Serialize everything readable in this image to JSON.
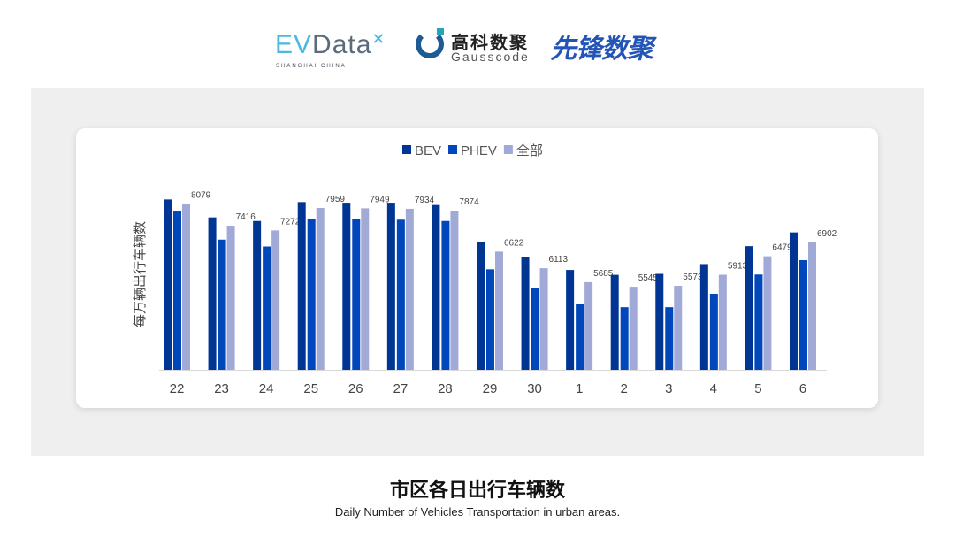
{
  "logos": {
    "evdata": {
      "ev": "EV",
      "data": "Data",
      "sub": "SHANGHAI CHINA"
    },
    "gausscode": {
      "cn": "高科数聚",
      "en": "Gausscode"
    },
    "xianfeng": "先锋数聚"
  },
  "caption": {
    "title": "市区各日出行车辆数",
    "subtitle": "Daily Number of Vehicles Transportation in urban areas."
  },
  "chart_data": {
    "type": "bar",
    "ylabel": "每万辆出行车辆数",
    "xlabel": "",
    "ylim": [
      3000,
      8500
    ],
    "grid": false,
    "legend_position": "top-center",
    "categories": [
      "22",
      "23",
      "24",
      "25",
      "26",
      "27",
      "28",
      "29",
      "30",
      "1",
      "2",
      "3",
      "4",
      "5",
      "6"
    ],
    "series": [
      {
        "name": "BEV",
        "color": "#003594",
        "values": [
          8220,
          7670,
          7560,
          8140,
          8120,
          8120,
          8050,
          6930,
          6450,
          6060,
          5910,
          5940,
          6240,
          6790,
          7210
        ]
      },
      {
        "name": "PHEV",
        "color": "#0047bb",
        "values": [
          7850,
          6990,
          6780,
          7630,
          7620,
          7600,
          7560,
          6080,
          5510,
          5030,
          4920,
          4920,
          5330,
          5920,
          6360
        ]
      },
      {
        "name": "全部",
        "color": "#a1a9d7",
        "values": [
          8079,
          7416,
          7272,
          7959,
          7949,
          7934,
          7874,
          6622,
          6113,
          5685,
          5545,
          5573,
          5913,
          6479,
          6902
        ],
        "data_labels": true
      }
    ]
  }
}
